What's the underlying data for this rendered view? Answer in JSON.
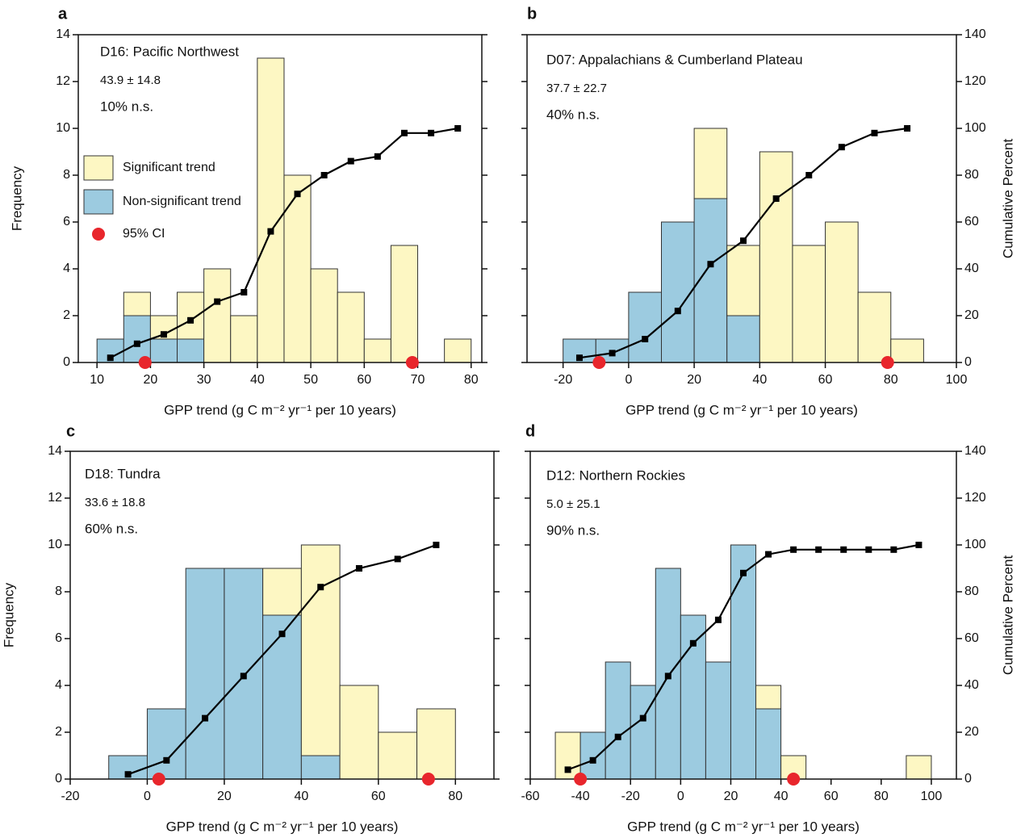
{
  "chart_data": [
    {
      "type": "histogram",
      "panel_label": "a",
      "annotations": [
        "D16: Pacific Northwest",
        "43.9 ± 14.8",
        "10% n.s."
      ],
      "xlabel": "GPP trend (g C m⁻² yr⁻¹ per 10 years)",
      "ylabel": "Frequency",
      "bins": [
        10,
        15,
        20,
        25,
        30,
        35,
        40,
        45,
        50,
        55,
        60,
        65,
        70,
        75,
        80
      ],
      "series": [
        {
          "name": "Significant trend",
          "color": "#fdf7c3",
          "values": [
            0,
            1,
            1,
            2,
            4,
            2,
            13,
            8,
            4,
            3,
            1,
            5,
            0,
            1
          ]
        },
        {
          "name": "Non-significant trend",
          "color": "#9ccbe0",
          "values": [
            1,
            2,
            1,
            1,
            0,
            0,
            0,
            0,
            0,
            0,
            0,
            0,
            0,
            0
          ]
        }
      ],
      "cumulative": {
        "axis": "y2",
        "color": "#000000",
        "x": [
          12.5,
          17.5,
          22.5,
          27.5,
          32.5,
          37.5,
          42.5,
          47.5,
          52.5,
          57.5,
          62.5,
          67.5,
          72.5,
          77.5
        ],
        "values": [
          2,
          8,
          12,
          18,
          26,
          30,
          56,
          72,
          80,
          86,
          88,
          98,
          98,
          100
        ]
      },
      "ci": {
        "name": "95% CI",
        "color": "#e8262c",
        "x": [
          19,
          69
        ]
      },
      "legend": "upper left",
      "xlim": [
        6.5,
        82
      ],
      "xticks": [
        10,
        20,
        30,
        40,
        50,
        60,
        70,
        80
      ],
      "ylim": [
        0,
        14
      ],
      "yticks": [
        0,
        2,
        4,
        6,
        8,
        10,
        12,
        14
      ],
      "y2lim": [
        0,
        140
      ]
    },
    {
      "type": "histogram",
      "panel_label": "b",
      "annotations": [
        "D07: Appalachians & Cumberland Plateau",
        "37.7 ± 22.7",
        "40% n.s."
      ],
      "xlabel": "GPP trend (g C m⁻² yr⁻¹ per 10 years)",
      "y2label": "Cumulative Percent",
      "bins": [
        -20,
        -10,
        0,
        10,
        20,
        30,
        40,
        50,
        60,
        70,
        80,
        90
      ],
      "series": [
        {
          "color": "#fdf7c3",
          "values": [
            0,
            0,
            0,
            0,
            3,
            3,
            9,
            5,
            6,
            3,
            1
          ]
        },
        {
          "color": "#9ccbe0",
          "values": [
            1,
            1,
            3,
            6,
            7,
            2,
            0,
            0,
            0,
            0,
            0
          ]
        }
      ],
      "cumulative": {
        "axis": "y2",
        "color": "#000000",
        "x": [
          -15,
          -5,
          5,
          15,
          25,
          35,
          45,
          55,
          65,
          75,
          85
        ],
        "values": [
          2,
          4,
          10,
          22,
          42,
          52,
          70,
          80,
          92,
          98,
          100
        ]
      },
      "ci": {
        "color": "#e8262c",
        "x": [
          -9,
          79
        ]
      },
      "xlim": [
        -31,
        100
      ],
      "xticks": [
        -20,
        0,
        20,
        40,
        60,
        80,
        100
      ],
      "ylim": [
        0,
        14
      ],
      "y2lim": [
        0,
        140
      ],
      "y2ticks": [
        0,
        20,
        40,
        60,
        80,
        100,
        120,
        140
      ]
    },
    {
      "type": "histogram",
      "panel_label": "c",
      "annotations": [
        "D18: Tundra",
        "33.6 ± 18.8",
        "60% n.s."
      ],
      "xlabel": "GPP trend (g C m⁻² yr⁻¹ per 10 years)",
      "ylabel": "Frequency",
      "bins": [
        -10,
        0,
        10,
        20,
        30,
        40,
        50,
        60,
        70,
        80
      ],
      "series": [
        {
          "color": "#fdf7c3",
          "values": [
            0,
            0,
            0,
            0,
            2,
            9,
            4,
            2,
            3
          ]
        },
        {
          "color": "#9ccbe0",
          "values": [
            1,
            3,
            9,
            9,
            7,
            1,
            0,
            0,
            0
          ]
        }
      ],
      "cumulative": {
        "axis": "y2",
        "color": "#000000",
        "x": [
          -5,
          5,
          15,
          25,
          35,
          45,
          55,
          65,
          75
        ],
        "values": [
          2,
          8,
          26,
          44,
          62,
          82,
          90,
          94,
          100
        ]
      },
      "ci": {
        "color": "#e8262c",
        "x": [
          3,
          73
        ]
      },
      "xlim": [
        -20,
        90
      ],
      "xticks": [
        -20,
        0,
        20,
        40,
        60,
        80
      ],
      "ylim": [
        0,
        14
      ],
      "yticks": [
        0,
        2,
        4,
        6,
        8,
        10,
        12,
        14
      ],
      "y2lim": [
        0,
        140
      ]
    },
    {
      "type": "histogram",
      "panel_label": "d",
      "annotations": [
        "D12: Northern Rockies",
        "5.0 ± 25.1",
        "90% n.s."
      ],
      "xlabel": "GPP trend (g C m⁻² yr⁻¹ per 10 years)",
      "y2label": "Cumulative Percent",
      "bins": [
        -50,
        -40,
        -30,
        -20,
        -10,
        0,
        10,
        20,
        30,
        40,
        50,
        60,
        70,
        80,
        90,
        100
      ],
      "series": [
        {
          "color": "#fdf7c3",
          "values": [
            2,
            0,
            0,
            0,
            0,
            0,
            0,
            0,
            1,
            1,
            0,
            0,
            0,
            0,
            1
          ]
        },
        {
          "color": "#9ccbe0",
          "values": [
            0,
            2,
            5,
            4,
            9,
            7,
            5,
            10,
            3,
            0,
            0,
            0,
            0,
            0,
            0
          ]
        }
      ],
      "cumulative": {
        "axis": "y2",
        "color": "#000000",
        "x": [
          -45,
          -35,
          -25,
          -15,
          -5,
          5,
          15,
          25,
          35,
          45,
          55,
          65,
          75,
          85,
          95
        ],
        "values": [
          4,
          8,
          18,
          26,
          44,
          58,
          68,
          88,
          96,
          98,
          98,
          98,
          98,
          98,
          100
        ]
      },
      "ci": {
        "color": "#e8262c",
        "x": [
          -40,
          45
        ]
      },
      "xlim": [
        -60,
        110
      ],
      "xticks": [
        -60,
        -40,
        -20,
        0,
        20,
        40,
        60,
        80,
        100
      ],
      "ylim": [
        0,
        14
      ],
      "y2lim": [
        0,
        140
      ],
      "y2ticks": [
        0,
        20,
        40,
        60,
        80,
        100,
        120,
        140
      ]
    }
  ]
}
